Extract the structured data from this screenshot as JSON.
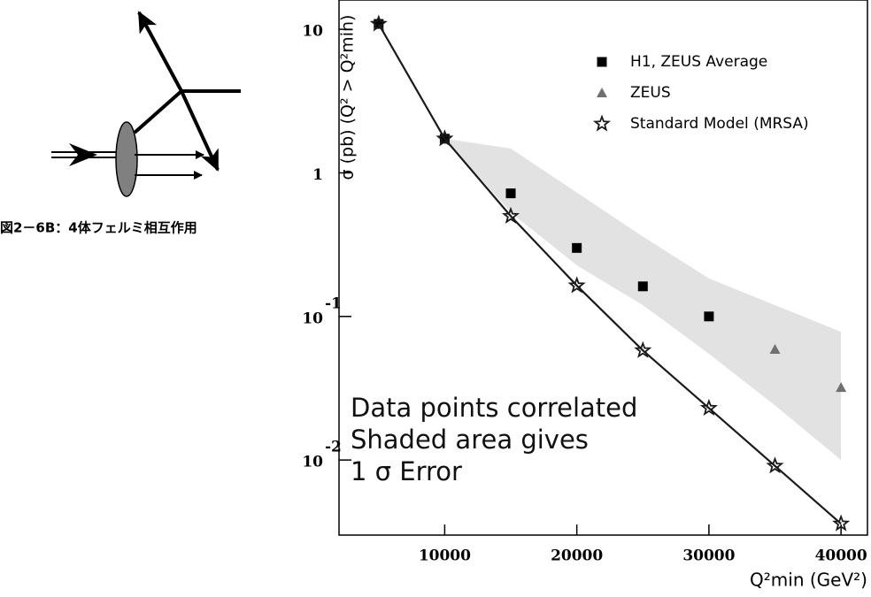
{
  "diagram": {
    "caption": "図2－6B：4体フェルミ相互作用"
  },
  "chart_data": {
    "type": "scatter",
    "log_y": true,
    "ylabel": "σ (pb) (Q² > Q²min)",
    "xlabel": "Q²min (GeV²)",
    "xlim": [
      2000,
      42000
    ],
    "xticks": [
      10000,
      20000,
      30000,
      40000
    ],
    "ylim": [
      0.003,
      16
    ],
    "yticks": [
      10,
      1,
      {
        "value": 0.1,
        "label": "10",
        "exponent": "-1"
      },
      {
        "value": 0.01,
        "label": "10",
        "exponent": "-2"
      }
    ],
    "annotation": [
      "Data points correlated",
      "Shaded area gives",
      "1 σ Error"
    ],
    "band": {
      "color": "#e2e2e2",
      "x": [
        5000,
        10000,
        15000,
        20000,
        25000,
        30000,
        35000,
        40000
      ],
      "upper": [
        10.9,
        1.73,
        1.48,
        0.73,
        0.36,
        0.184,
        0.12,
        0.078
      ],
      "lower": [
        10.9,
        1.73,
        0.53,
        0.227,
        0.12,
        0.055,
        0.024,
        0.01
      ]
    },
    "series": [
      {
        "name": "H1, ZEUS Average",
        "color": "#000000",
        "marker": "square",
        "x": [
          5000,
          10000,
          15000,
          20000,
          25000,
          30000
        ],
        "values": [
          10.9,
          1.73,
          0.72,
          0.3,
          0.162,
          0.1
        ]
      },
      {
        "name": "ZEUS",
        "color": "#707070",
        "marker": "triangle",
        "x": [
          35000,
          40000
        ],
        "values": [
          0.059,
          0.032
        ]
      },
      {
        "name": "Standard Model (MRSA)",
        "color": "#1a1a1a",
        "marker": "star",
        "line": true,
        "x": [
          5000,
          10000,
          15000,
          20000,
          25000,
          30000,
          35000,
          40000
        ],
        "values": [
          10.9,
          1.73,
          0.5,
          0.164,
          0.058,
          0.023,
          0.0091,
          0.0036
        ]
      }
    ]
  }
}
